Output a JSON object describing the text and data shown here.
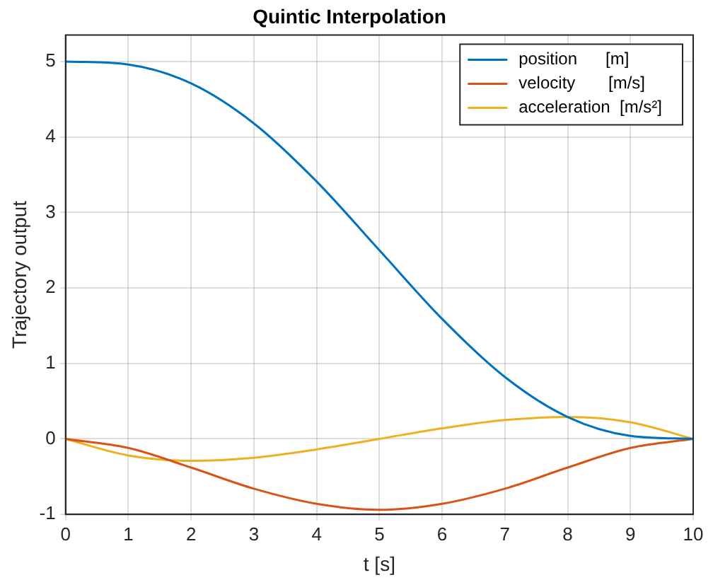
{
  "chart_data": {
    "type": "line",
    "title": "Quintic Interpolation",
    "xlabel": "t [s]",
    "ylabel": "Trajectory output",
    "x": [
      0,
      1,
      2,
      3,
      4,
      5,
      6,
      7,
      8,
      9,
      10
    ],
    "series": [
      {
        "name": "position      [m]",
        "color": "#0072bd",
        "values": [
          5,
          4.96,
          4.71,
          4.18,
          3.41,
          2.5,
          1.59,
          0.82,
          0.29,
          0.04,
          0
        ]
      },
      {
        "name": "velocity       [m/s]",
        "color": "#d95319",
        "values": [
          0,
          -0.12,
          -0.38,
          -0.66,
          -0.86,
          -0.94,
          -0.86,
          -0.66,
          -0.38,
          -0.12,
          0
        ]
      },
      {
        "name": "acceleration  [m/s²]",
        "color": "#edb120",
        "values": [
          0,
          -0.22,
          -0.29,
          -0.25,
          -0.14,
          0,
          0.14,
          0.25,
          0.29,
          0.22,
          0
        ]
      }
    ],
    "xlim": [
      0,
      10
    ],
    "xticks": [
      0,
      1,
      2,
      3,
      4,
      5,
      6,
      7,
      8,
      9,
      10
    ],
    "ylim": [
      -1,
      5.35
    ],
    "yticks": [
      -1,
      0,
      1,
      2,
      3,
      4,
      5
    ],
    "grid": true,
    "legend": "top right",
    "marker": "none",
    "line_style": "solid"
  }
}
